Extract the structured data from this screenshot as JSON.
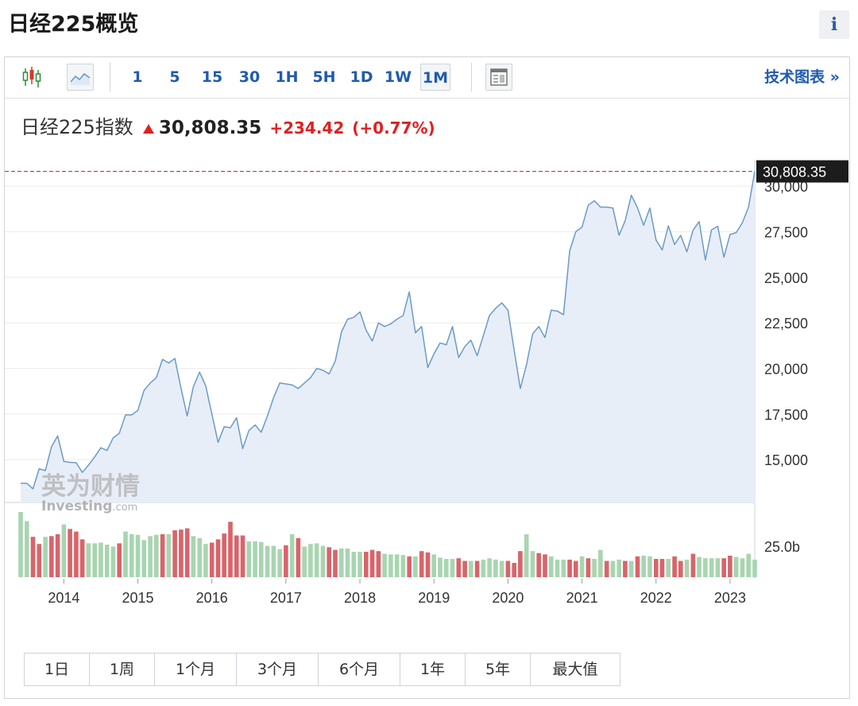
{
  "header": {
    "title": "日经225概览",
    "info_label": "i"
  },
  "toolbar": {
    "intervals": [
      "1",
      "5",
      "15",
      "30",
      "1H",
      "5H",
      "1D",
      "1W",
      "1M"
    ],
    "active_interval": "1M",
    "tech_chart_link": "技术图表 »",
    "icons": [
      "candlestick-icon",
      "area-chart-icon",
      "layout-icon"
    ]
  },
  "quote": {
    "name": "日经225指数",
    "price": "30,808.35",
    "change": "+234.42",
    "change_pct": "(+0.77%)"
  },
  "colors": {
    "up": "#e02020",
    "line": "#6a9bc9",
    "area": "#e8eef7",
    "vol_up": "#a8d5b0",
    "vol_down": "#d9646a",
    "link": "#1f5bb0"
  },
  "watermark": {
    "cn": "英为财情",
    "en": "Investing",
    "suffix": ".com"
  },
  "ranges": [
    "1日",
    "1周",
    "1个月",
    "3个月",
    "6个月",
    "1年",
    "5年",
    "最大值"
  ],
  "chart_data": {
    "type": "area",
    "title": "日经225指数",
    "x_start": "2013-06",
    "x_step": "1 month",
    "x_ticks": [
      "2014",
      "2015",
      "2016",
      "2017",
      "2018",
      "2019",
      "2020",
      "2021",
      "2022",
      "2023"
    ],
    "y_ticks": [
      15000,
      17500,
      20000,
      22500,
      25000,
      27500,
      30000
    ],
    "y_tick_labels": [
      "15,000",
      "17,500",
      "20,000",
      "22,500",
      "25,000",
      "27,500",
      "30,000"
    ],
    "ylim": [
      12650,
      31400
    ],
    "last_price_label": "30,808.35",
    "last_price": 30808.35,
    "grid": true,
    "values": [
      13700,
      13700,
      13400,
      14500,
      14400,
      15700,
      16300,
      14900,
      14850,
      14830,
      14300,
      14700,
      15150,
      15650,
      15500,
      16200,
      16450,
      17450,
      17450,
      17700,
      18800,
      19200,
      19500,
      20500,
      20300,
      20550,
      18900,
      17400,
      19000,
      19800,
      19050,
      17500,
      15950,
      16800,
      16750,
      17300,
      15600,
      16600,
      16900,
      16500,
      17400,
      18400,
      19200,
      19150,
      19100,
      18900,
      19200,
      19500,
      20000,
      19900,
      19700,
      20400,
      22000,
      22700,
      22800,
      23100,
      22100,
      21500,
      22500,
      22300,
      22450,
      22700,
      22900,
      24200,
      21950,
      22300,
      20050,
      20800,
      21400,
      21300,
      22300,
      20600,
      21200,
      21550,
      20700,
      21800,
      22900,
      23300,
      23600,
      23200,
      21000,
      18900,
      20200,
      21900,
      22300,
      21700,
      23200,
      23150,
      22950,
      26450,
      27500,
      27750,
      28950,
      29200,
      28850,
      28850,
      28800,
      27300,
      28100,
      29500,
      28800,
      27850,
      28800,
      27050,
      26500,
      27820,
      26800,
      27300,
      26400,
      27590,
      28050,
      25950,
      27600,
      27800,
      26100,
      27350,
      27450,
      28000,
      28850,
      30808.35
    ],
    "volume_label": "25.0b",
    "volume_up": [
      true,
      true,
      false,
      false,
      true,
      false,
      false,
      true,
      false,
      false,
      false,
      true,
      true,
      true,
      true,
      true,
      false,
      true,
      true,
      true,
      true,
      true,
      true,
      false,
      true,
      false,
      false,
      false,
      true,
      true,
      true,
      false,
      false,
      false,
      false,
      false,
      false,
      true,
      true,
      true,
      true,
      true,
      true,
      false,
      true,
      false,
      true,
      true,
      true,
      true,
      false,
      false,
      true,
      true,
      true,
      true,
      false,
      false,
      false,
      true,
      true,
      true,
      true,
      false,
      true,
      false,
      false,
      true,
      true,
      true,
      true,
      false,
      false,
      true,
      false,
      true,
      true,
      true,
      true,
      false,
      false,
      false,
      true,
      true,
      false,
      false,
      true,
      true,
      true,
      false,
      false,
      true,
      false,
      true,
      true,
      false,
      true,
      true,
      false,
      true,
      false,
      true,
      true,
      false,
      false,
      true,
      false,
      false,
      true,
      false,
      true,
      true,
      true,
      true,
      false,
      false,
      true,
      true,
      true,
      true
    ],
    "volume_ratio": [
      1.0,
      0.86,
      0.62,
      0.51,
      0.62,
      0.63,
      0.66,
      0.81,
      0.74,
      0.7,
      0.58,
      0.52,
      0.52,
      0.53,
      0.5,
      0.47,
      0.52,
      0.7,
      0.66,
      0.65,
      0.57,
      0.63,
      0.65,
      0.66,
      0.66,
      0.72,
      0.73,
      0.75,
      0.63,
      0.6,
      0.51,
      0.53,
      0.58,
      0.67,
      0.85,
      0.64,
      0.64,
      0.55,
      0.55,
      0.54,
      0.48,
      0.48,
      0.43,
      0.49,
      0.66,
      0.6,
      0.47,
      0.51,
      0.52,
      0.48,
      0.46,
      0.42,
      0.44,
      0.44,
      0.39,
      0.39,
      0.39,
      0.42,
      0.4,
      0.36,
      0.35,
      0.35,
      0.34,
      0.32,
      0.32,
      0.4,
      0.38,
      0.35,
      0.3,
      0.28,
      0.28,
      0.29,
      0.25,
      0.25,
      0.25,
      0.27,
      0.29,
      0.27,
      0.25,
      0.25,
      0.22,
      0.4,
      0.66,
      0.4,
      0.37,
      0.35,
      0.32,
      0.27,
      0.27,
      0.27,
      0.25,
      0.32,
      0.29,
      0.28,
      0.42,
      0.25,
      0.25,
      0.27,
      0.25,
      0.25,
      0.32,
      0.33,
      0.32,
      0.28,
      0.28,
      0.28,
      0.32,
      0.25,
      0.27,
      0.36,
      0.31,
      0.29,
      0.29,
      0.29,
      0.29,
      0.33,
      0.31,
      0.29,
      0.36,
      0.27
    ]
  }
}
